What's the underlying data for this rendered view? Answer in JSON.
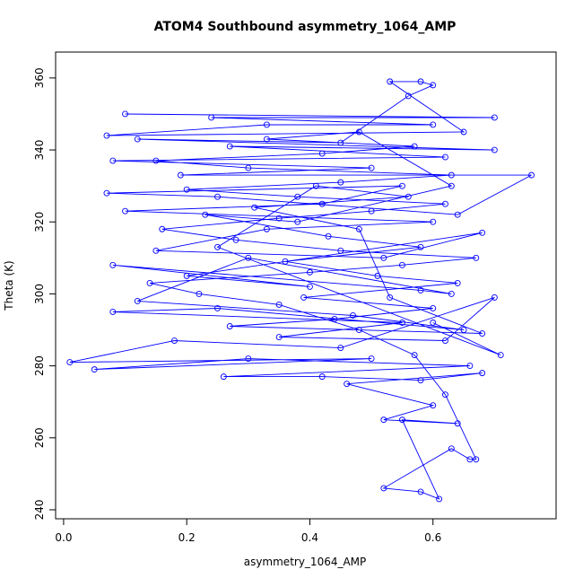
{
  "chart_data": {
    "type": "line",
    "title": "ATOM4 Southbound asymmetry_1064_AMP",
    "x_label": "asymmetry_1064_AMP",
    "y_label": "Theta (K)",
    "color": "#0000ff",
    "xlim": [
      -0.013,
      0.8
    ],
    "ylim": [
      237.5,
      367.2
    ],
    "xticks": [
      {
        "value": 0,
        "label": "0.0"
      },
      0.2,
      0.4,
      0.6
    ],
    "yticks": [
      240,
      260,
      280,
      300,
      320,
      340,
      360
    ],
    "x": [
      0.1,
      0.7,
      0.24,
      0.6,
      0.33,
      0.07,
      0.65,
      0.53,
      0.58,
      0.6,
      0.56,
      0.45,
      0.12,
      0.7,
      0.27,
      0.62,
      0.08,
      0.5,
      0.19,
      0.76,
      0.64,
      0.25,
      0.07,
      0.55,
      0.42,
      0.1,
      0.6,
      0.33,
      0.15,
      0.52,
      0.68,
      0.2,
      0.4,
      0.08,
      0.58,
      0.63,
      0.3,
      0.12,
      0.47,
      0.65,
      0.25,
      0.08,
      0.55,
      0.35,
      0.62,
      0.7,
      0.45,
      0.18,
      0.01,
      0.5,
      0.05,
      0.3,
      0.66,
      0.26,
      0.42,
      0.58,
      0.68,
      0.46,
      0.6,
      0.52,
      0.64,
      0.55,
      0.61,
      0.58,
      0.52,
      0.63,
      0.66,
      0.67,
      0.62,
      0.57,
      0.48,
      0.35,
      0.22,
      0.14,
      0.4,
      0.55,
      0.67,
      0.45,
      0.28,
      0.16,
      0.35,
      0.5,
      0.62,
      0.38,
      0.2,
      0.45,
      0.63,
      0.3,
      0.15,
      0.42,
      0.57,
      0.33,
      0.48,
      0.63,
      0.38,
      0.23,
      0.43,
      0.58,
      0.36,
      0.51,
      0.64,
      0.39,
      0.6,
      0.44,
      0.27,
      0.68,
      0.53,
      0.48,
      0.31,
      0.56,
      0.41,
      0.25,
      0.71,
      0.6
    ],
    "values": [
      350,
      349,
      349,
      347,
      347,
      344,
      345,
      359,
      359,
      358,
      355,
      342,
      343,
      340,
      341,
      338,
      337,
      335,
      333,
      333,
      322,
      327,
      328,
      330,
      325,
      323,
      320,
      318,
      312,
      310,
      317,
      305,
      302,
      308,
      301,
      300,
      310,
      298,
      294,
      290,
      296,
      295,
      292,
      288,
      287,
      299,
      285,
      287,
      281,
      282,
      279,
      282,
      280,
      277,
      277,
      276,
      278,
      275,
      269,
      265,
      264,
      265,
      243,
      245,
      246,
      257,
      254,
      254,
      272,
      283,
      290,
      297,
      300,
      303,
      306,
      308,
      310,
      312,
      315,
      318,
      321,
      323,
      325,
      327,
      329,
      331,
      333,
      335,
      337,
      339,
      341,
      343,
      345,
      330,
      320,
      322,
      316,
      313,
      309,
      305,
      303,
      299,
      296,
      293,
      291,
      289,
      299,
      318,
      324,
      327,
      330,
      313,
      283,
      292
    ]
  }
}
